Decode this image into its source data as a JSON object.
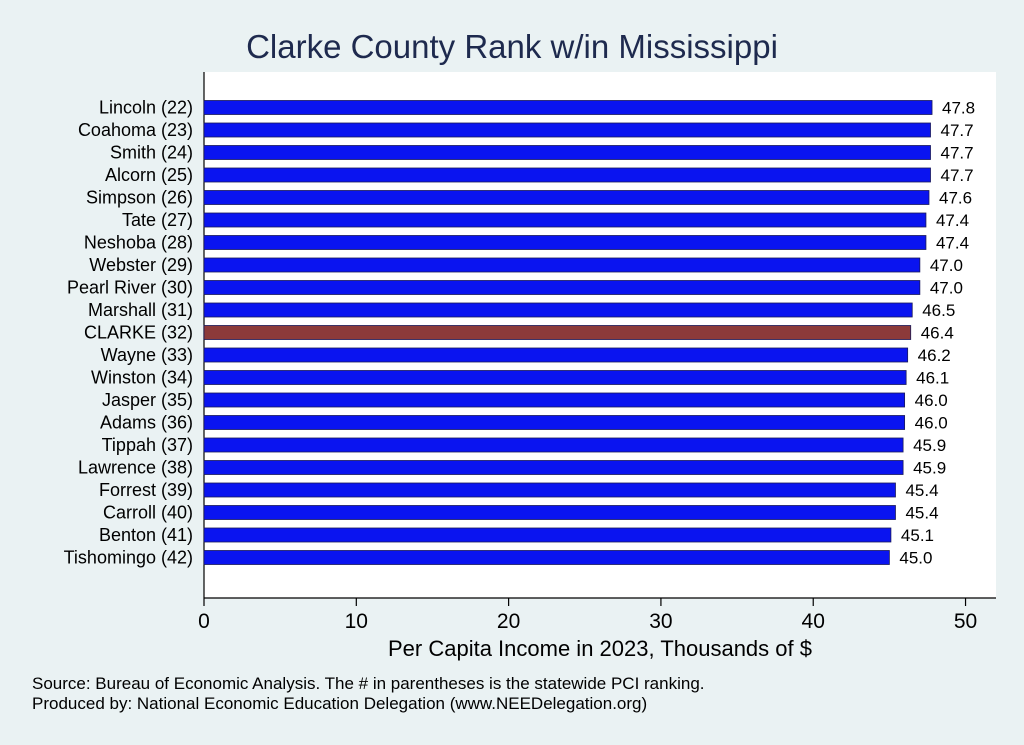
{
  "chart_data": {
    "type": "bar",
    "orientation": "horizontal",
    "title": "Clarke County Rank w/in Mississippi",
    "xlabel": "Per Capita Income in 2023, Thousands of $",
    "ylabel": "",
    "xlim": [
      0,
      52
    ],
    "xticks": [
      0,
      10,
      20,
      30,
      40,
      50
    ],
    "grid": false,
    "categories": [
      "Lincoln (22)",
      "Coahoma (23)",
      "Smith (24)",
      "Alcorn (25)",
      "Simpson (26)",
      "Tate (27)",
      "Neshoba (28)",
      "Webster (29)",
      "Pearl River (30)",
      "Marshall (31)",
      "CLARKE (32)",
      "Wayne (33)",
      "Winston (34)",
      "Jasper (35)",
      "Adams (36)",
      "Tippah (37)",
      "Lawrence (38)",
      "Forrest (39)",
      "Carroll (40)",
      "Benton (41)",
      "Tishomingo (42)"
    ],
    "values": [
      47.8,
      47.7,
      47.7,
      47.7,
      47.6,
      47.4,
      47.4,
      47.0,
      47.0,
      46.5,
      46.4,
      46.2,
      46.1,
      46.0,
      46.0,
      45.9,
      45.9,
      45.4,
      45.4,
      45.1,
      45.0
    ],
    "value_labels": [
      "47.8",
      "47.7",
      "47.7",
      "47.7",
      "47.6",
      "47.4",
      "47.4",
      "47.0",
      "47.0",
      "46.5",
      "46.4",
      "46.2",
      "46.1",
      "46.0",
      "46.0",
      "45.9",
      "45.9",
      "45.4",
      "45.4",
      "45.1",
      "45.0"
    ],
    "highlight": "CLARKE (32)",
    "colors": {
      "bar": "#0a14f0",
      "highlight_bar": "#8c3a3a",
      "bar_edge": "#1a1a5a",
      "plot_background": "#ffffff",
      "page_background": "#eaf2f3",
      "title": "#1e2a4e"
    }
  },
  "notes": {
    "source": "Source: Bureau of Economic Analysis. The # in parentheses is the statewide PCI ranking.",
    "produced_by": "Produced by: National Economic Education Delegation (www.NEEDelegation.org)"
  }
}
